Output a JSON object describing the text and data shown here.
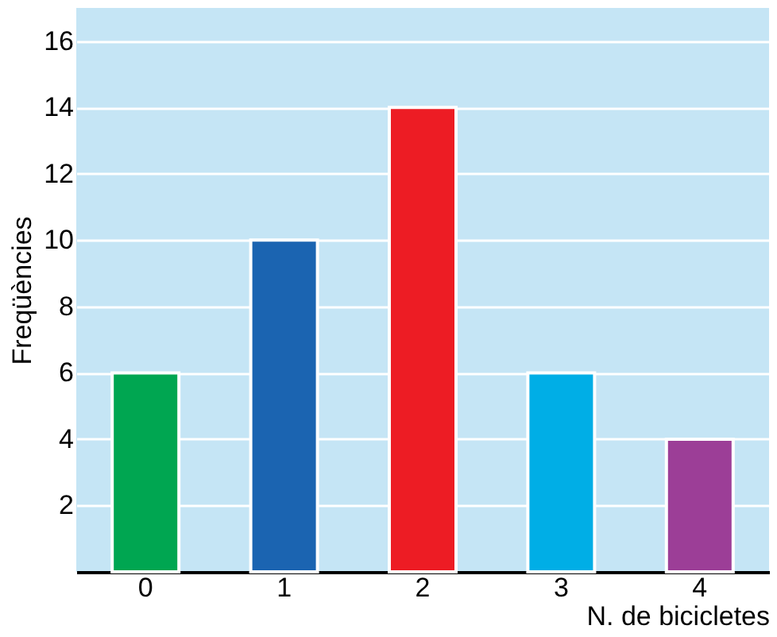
{
  "chart_data": {
    "type": "bar",
    "xlabel": "N. de bicicletes",
    "ylabel": "Freqüències",
    "categories": [
      "0",
      "1",
      "2",
      "3",
      "4"
    ],
    "values": [
      6,
      10,
      14,
      6,
      4
    ],
    "colors": [
      "#00a651",
      "#1b64b1",
      "#ed1c24",
      "#00aee6",
      "#9c3e97"
    ],
    "ylim": [
      0,
      17
    ],
    "yticks": [
      {
        "value": 0,
        "label": null
      },
      2,
      4,
      6,
      8,
      10,
      12,
      14,
      16
    ],
    "grid": "y"
  }
}
